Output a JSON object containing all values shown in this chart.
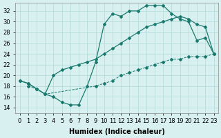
{
  "line1_x": [
    0,
    1,
    2,
    3,
    4,
    5,
    6,
    7,
    8,
    9,
    10,
    11,
    12,
    13,
    14,
    15,
    16,
    17,
    18,
    19,
    20,
    21,
    22,
    23
  ],
  "line1_y": [
    19,
    18.5,
    17.5,
    16.5,
    16,
    15,
    14.5,
    14.5,
    18,
    22.5,
    29.5,
    31.5,
    31,
    32,
    32,
    33,
    33,
    33,
    31.5,
    30.5,
    30,
    26.5,
    27,
    24
  ],
  "line2_x": [
    0,
    1,
    2,
    3,
    4,
    5,
    6,
    7,
    8,
    9,
    10,
    11,
    12,
    13,
    14,
    15,
    16,
    17,
    18,
    19,
    20,
    21,
    22,
    23
  ],
  "line2_y": [
    19,
    18.5,
    17.5,
    16.5,
    20,
    21,
    21.5,
    22,
    22.5,
    23,
    24,
    25,
    26,
    27,
    28,
    29,
    29.5,
    30,
    30.5,
    31,
    30.5,
    29.5,
    29,
    24
  ],
  "line3_x": [
    1,
    2,
    3,
    9,
    10,
    11,
    12,
    13,
    14,
    15,
    16,
    17,
    18,
    19,
    20,
    21,
    22,
    23
  ],
  "line3_y": [
    18,
    17.5,
    16.5,
    18,
    18.5,
    19,
    20,
    20.5,
    21,
    21.5,
    22,
    22.5,
    23,
    23,
    23.5,
    23.5,
    23.5,
    24
  ],
  "color": "#1a7a6e",
  "bg_color": "#d8f0f0",
  "grid_color": "#b0d8d8",
  "xlabel": "Humidex (Indice chaleur)",
  "xlim": [
    -0.5,
    23.5
  ],
  "ylim": [
    13,
    33.5
  ],
  "xticks": [
    0,
    1,
    2,
    3,
    4,
    5,
    6,
    7,
    8,
    9,
    10,
    11,
    12,
    13,
    14,
    15,
    16,
    17,
    18,
    19,
    20,
    21,
    22,
    23
  ],
  "yticks": [
    14,
    16,
    18,
    20,
    22,
    24,
    26,
    28,
    30,
    32
  ],
  "label_fontsize": 7,
  "tick_fontsize": 6
}
